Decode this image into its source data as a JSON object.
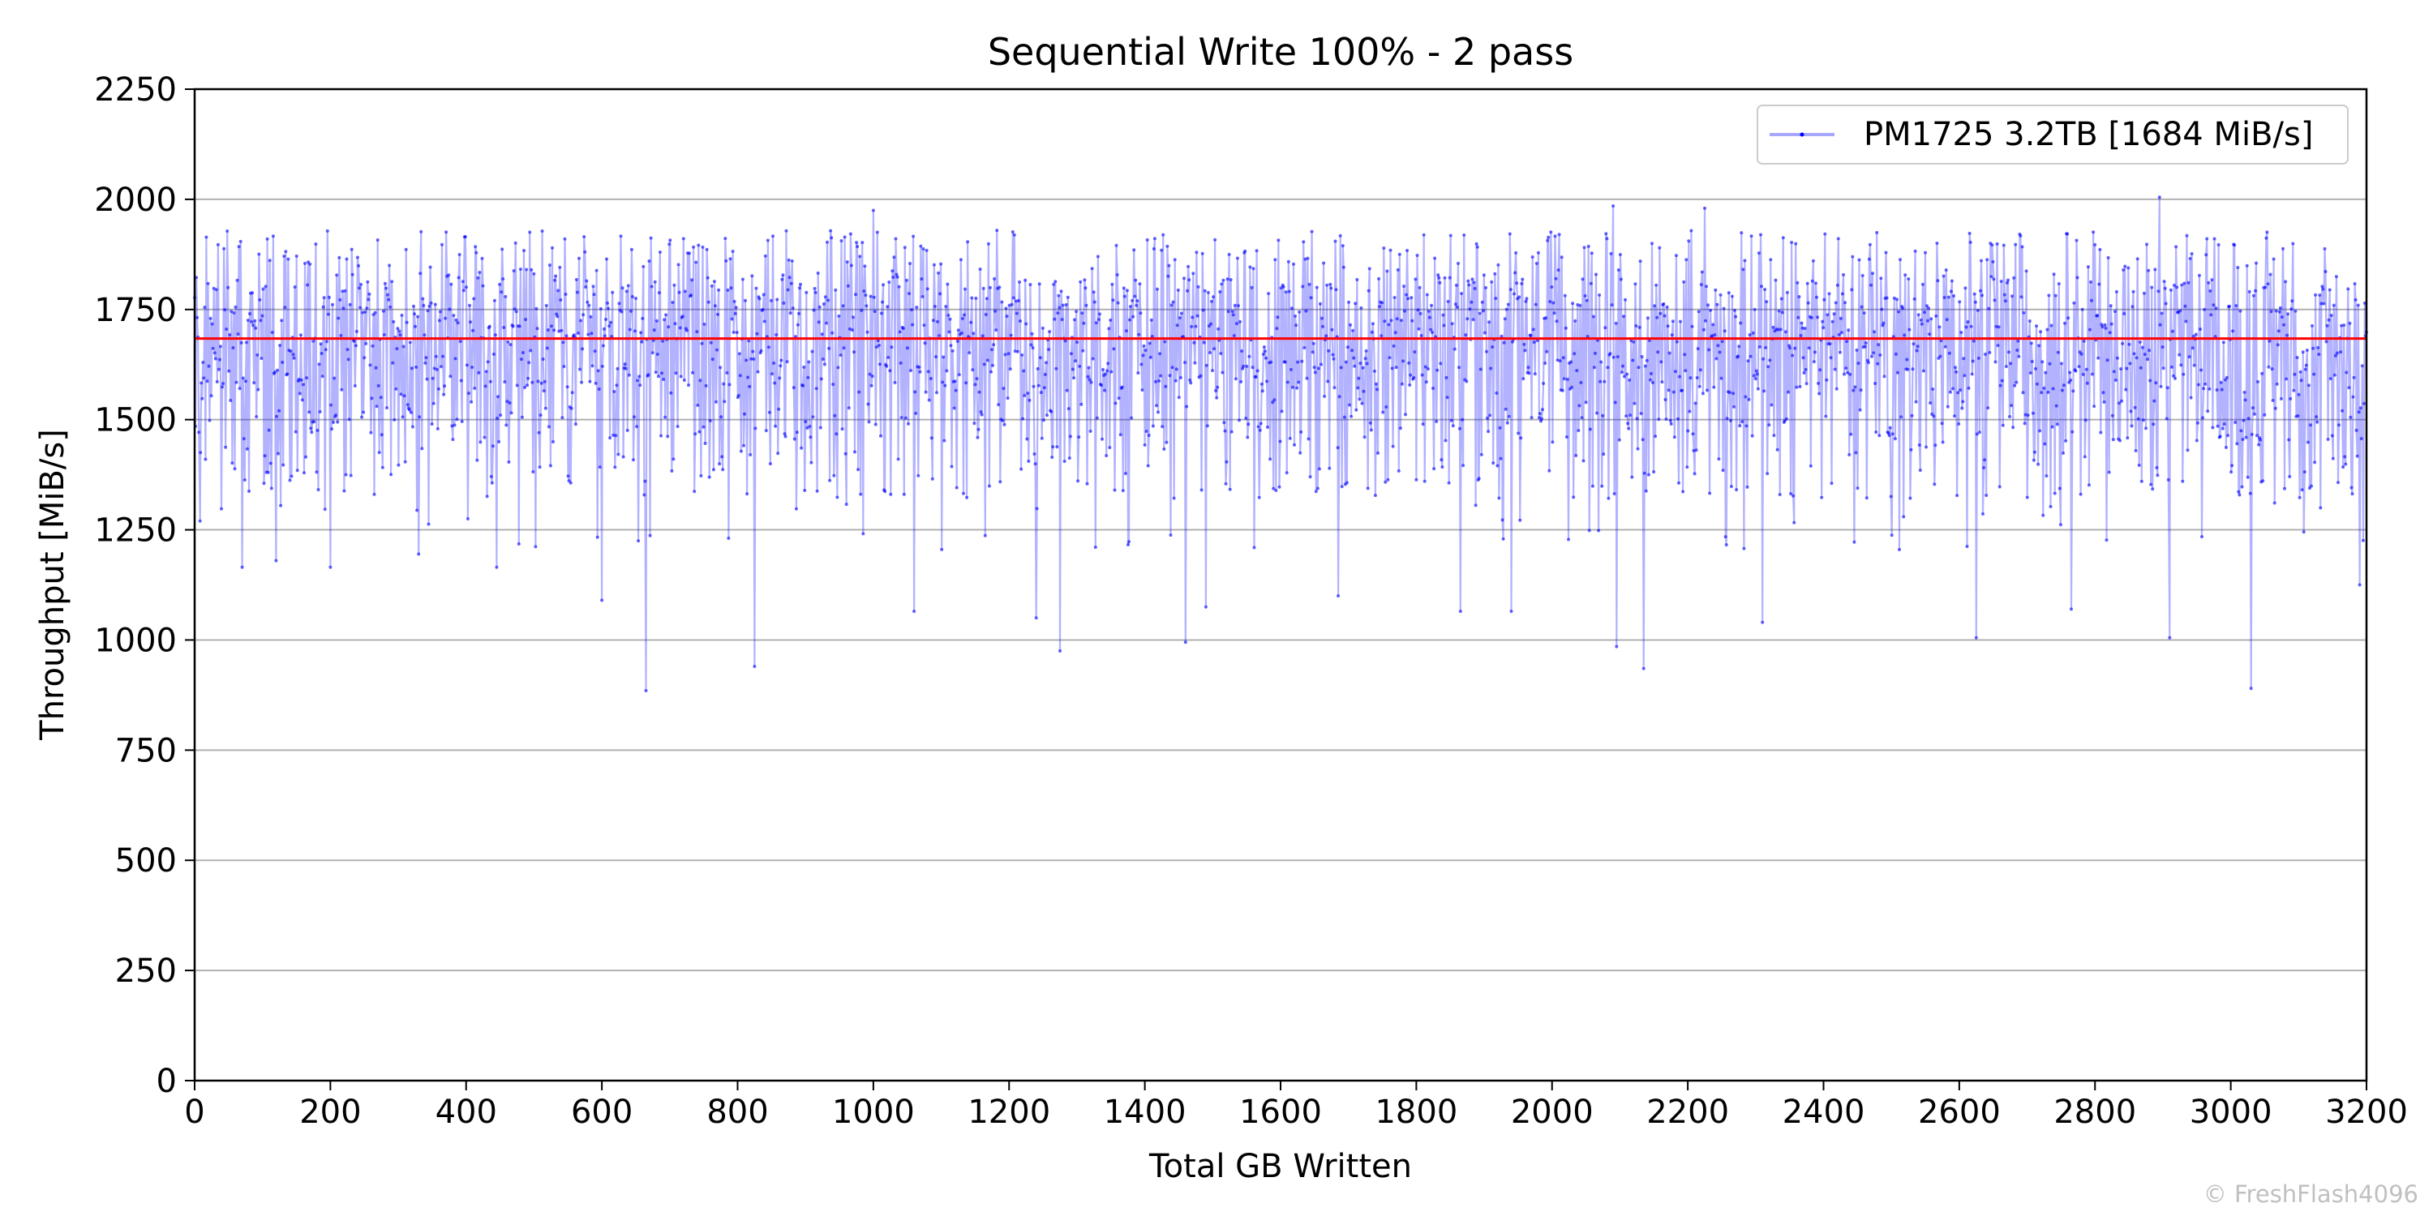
{
  "chart_data": {
    "type": "line",
    "title": "Sequential Write 100% - 2 pass",
    "xlabel": "Total GB Written",
    "ylabel": "Throughput [MiB/s]",
    "xlim": [
      0,
      3200
    ],
    "ylim": [
      0,
      2250
    ],
    "xticks": [
      0,
      200,
      400,
      600,
      800,
      1000,
      1200,
      1400,
      1600,
      1800,
      2000,
      2200,
      2400,
      2600,
      2800,
      3000,
      3200
    ],
    "yticks": [
      0,
      250,
      500,
      750,
      1000,
      1250,
      1500,
      1750,
      2000,
      2250
    ],
    "grid": "horizontal",
    "legend_position": "top-right",
    "series": [
      {
        "name": "PM1725 3.2TB [1684 MiB/s]",
        "color": "#0000ff",
        "average": 1684,
        "typical_range": [
          1450,
          1930
        ],
        "dips": [
          {
            "x": 8,
            "y": 1270
          },
          {
            "x": 70,
            "y": 1165
          },
          {
            "x": 120,
            "y": 1180
          },
          {
            "x": 200,
            "y": 1165
          },
          {
            "x": 330,
            "y": 1195
          },
          {
            "x": 445,
            "y": 1165
          },
          {
            "x": 600,
            "y": 1090
          },
          {
            "x": 665,
            "y": 885
          },
          {
            "x": 825,
            "y": 940
          },
          {
            "x": 1060,
            "y": 1065
          },
          {
            "x": 1240,
            "y": 1050
          },
          {
            "x": 1275,
            "y": 975
          },
          {
            "x": 1460,
            "y": 995
          },
          {
            "x": 1490,
            "y": 1075
          },
          {
            "x": 1685,
            "y": 1100
          },
          {
            "x": 1865,
            "y": 1065
          },
          {
            "x": 1940,
            "y": 1065
          },
          {
            "x": 2095,
            "y": 985
          },
          {
            "x": 2135,
            "y": 935
          },
          {
            "x": 2310,
            "y": 1040
          },
          {
            "x": 2625,
            "y": 1005
          },
          {
            "x": 2765,
            "y": 1070
          },
          {
            "x": 2910,
            "y": 1005
          },
          {
            "x": 3030,
            "y": 890
          },
          {
            "x": 3190,
            "y": 1125
          }
        ],
        "peaks": [
          {
            "x": 1000,
            "y": 1975
          },
          {
            "x": 2090,
            "y": 1985
          },
          {
            "x": 2225,
            "y": 1980
          },
          {
            "x": 2895,
            "y": 2005
          }
        ]
      }
    ],
    "reference_line": {
      "y": 1684,
      "color": "#ff0000"
    }
  },
  "watermark": "© FreshFlash4096"
}
